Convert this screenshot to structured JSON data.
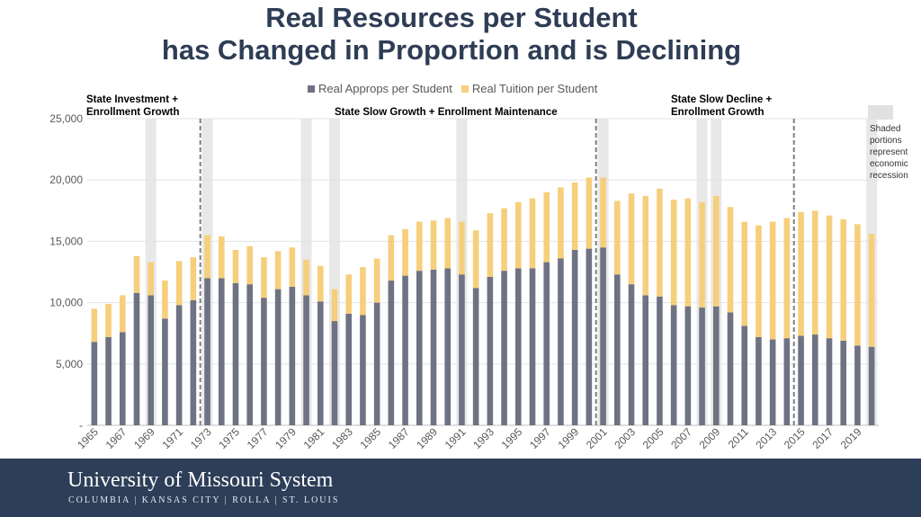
{
  "title": {
    "line1": "Real Resources per Student",
    "line2": "has Changed in Proportion and is Declining"
  },
  "annotations": {
    "era1": [
      "State Investment +",
      "Enrollment Growth"
    ],
    "era2": "State Slow Growth + Enrollment Maintenance",
    "era3": [
      "State Slow Decline +",
      "Enrollment Growth"
    ],
    "recession_note": [
      "Shaded",
      "portions",
      "represent",
      "economic",
      "recession"
    ]
  },
  "footer": {
    "name": "University of Missouri System",
    "campuses": "COLUMBIA | KANSAS CITY | ROLLA | ST. LOUIS"
  },
  "colors": {
    "approps": "#6e7283",
    "tuition": "#f6cf7c",
    "recession": "#d9d9d9",
    "divider": "#7f7f7f",
    "footer": "#2d3e58"
  },
  "chart_data": {
    "type": "bar",
    "stacked": true,
    "x": [
      1965,
      1966,
      1967,
      1968,
      1969,
      1970,
      1971,
      1972,
      1973,
      1974,
      1975,
      1976,
      1977,
      1978,
      1979,
      1980,
      1981,
      1982,
      1983,
      1984,
      1985,
      1986,
      1987,
      1988,
      1989,
      1990,
      1991,
      1992,
      1993,
      1994,
      1995,
      1996,
      1997,
      1998,
      1999,
      2000,
      2001,
      2002,
      2003,
      2004,
      2005,
      2006,
      2007,
      2008,
      2009,
      2010,
      2011,
      2012,
      2013,
      2014,
      2015,
      2016,
      2017,
      2018,
      2019,
      2020
    ],
    "tick_labels": [
      "1965",
      "1967",
      "1969",
      "1971",
      "1973",
      "1975",
      "1977",
      "1979",
      "1981",
      "1983",
      "1985",
      "1987",
      "1989",
      "1991",
      "1993",
      "1995",
      "1997",
      "1999",
      "2001",
      "2003",
      "2005",
      "2007",
      "2009",
      "2011",
      "2013",
      "2015",
      "2017",
      "2019"
    ],
    "series": [
      {
        "name": "Real Approps per Student",
        "values": [
          6800,
          7200,
          7600,
          10800,
          10600,
          8700,
          9800,
          10200,
          12000,
          12000,
          11600,
          11500,
          10400,
          11100,
          11300,
          10600,
          10100,
          8500,
          9100,
          9000,
          10000,
          11800,
          12200,
          12600,
          12700,
          12800,
          12300,
          11200,
          12100,
          12600,
          12800,
          12800,
          13300,
          13600,
          14300,
          14400,
          14500,
          12300,
          11500,
          10600,
          10500,
          9800,
          9700,
          9600,
          9700,
          9200,
          8100,
          7200,
          7000,
          7100,
          7300,
          7400,
          7100,
          6900,
          6500,
          6400
        ]
      },
      {
        "name": "Real Tuition per Student",
        "values": [
          2700,
          2700,
          3000,
          3000,
          2700,
          3100,
          3600,
          3500,
          3500,
          3400,
          2700,
          3100,
          3300,
          3100,
          3200,
          2900,
          2900,
          2600,
          3200,
          3900,
          3600,
          3700,
          3800,
          4000,
          4000,
          4100,
          4300,
          4700,
          5200,
          5100,
          5400,
          5700,
          5700,
          5800,
          5500,
          5800,
          5700,
          6000,
          7400,
          8100,
          8800,
          8600,
          8800,
          8600,
          9000,
          8600,
          8500,
          9100,
          9600,
          9800,
          10100,
          10100,
          10000,
          9900,
          9900,
          9200
        ]
      }
    ],
    "recession_years": [
      1969,
      1973,
      1980,
      1982,
      1991,
      2001,
      2008,
      2009,
      2020
    ],
    "era_dividers": [
      1973,
      2001,
      2015
    ],
    "ylim": [
      0,
      25000
    ],
    "y_ticks": [
      0,
      5000,
      10000,
      15000,
      20000,
      25000
    ],
    "y_tick_labels": [
      "-",
      "5,000",
      "10,000",
      "15,000",
      "20,000",
      "25,000"
    ],
    "legend": "top-center",
    "grid": true
  }
}
